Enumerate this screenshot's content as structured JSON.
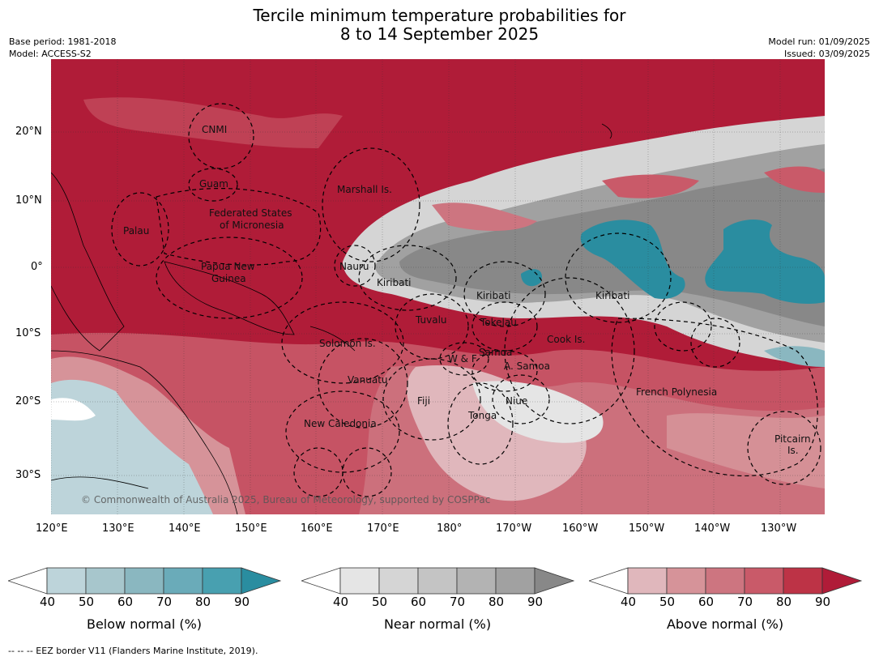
{
  "title_line1": "Tercile minimum temperature probabilities for",
  "title_line2": "8 to 14 September 2025",
  "base_period": "Base period: 1981-2018",
  "model": "Model: ACCESS-S2",
  "model_run": "Model run: 01/09/2025",
  "issued": "Issued: 03/09/2025",
  "lat_ticks": [
    "20°N",
    "10°N",
    "0°",
    "10°S",
    "20°S",
    "30°S"
  ],
  "lon_ticks": [
    "120°E",
    "130°E",
    "140°E",
    "150°E",
    "160°E",
    "170°E",
    "180°",
    "170°W",
    "160°W",
    "150°W",
    "140°W",
    "130°W"
  ],
  "copyright": "© Commonwealth of Australia 2025, Bureau of Meteorology, supported by COSPPac",
  "footer": "--  --  -- EEZ border V11 (Flanders Marine Institute, 2019).",
  "places": [
    {
      "text": "CNMI"
    },
    {
      "text": "Guam"
    },
    {
      "text": "Marshall Is."
    },
    {
      "text": "Palau"
    },
    {
      "text": "Federated States"
    },
    {
      "text": "of Micronesia"
    },
    {
      "text": "Papua New"
    },
    {
      "text": "Guinea"
    },
    {
      "text": "Nauru"
    },
    {
      "text": "Kiribati"
    },
    {
      "text": "Kiribati"
    },
    {
      "text": "Kiribati"
    },
    {
      "text": "Tuvalu"
    },
    {
      "text": "Tokelau"
    },
    {
      "text": "Solomon Is."
    },
    {
      "text": "Cook Is."
    },
    {
      "text": "W & F"
    },
    {
      "text": "Samoa"
    },
    {
      "text": "A. Samoa"
    },
    {
      "text": "Vanuatu"
    },
    {
      "text": "Fiji"
    },
    {
      "text": "Niue"
    },
    {
      "text": "French Polynesia"
    },
    {
      "text": "Tonga"
    },
    {
      "text": "New Caledonia"
    },
    {
      "text": "Pitcairn"
    },
    {
      "text": "Is."
    }
  ],
  "colorbars": [
    {
      "label": "Below normal (%)",
      "ticks": [
        "40",
        "50",
        "60",
        "70",
        "80",
        "90"
      ],
      "colors": [
        "#ffffff",
        "#bdd4da",
        "#a7c6cc",
        "#8ab7c0",
        "#6aabb9",
        "#48a0b0",
        "#2a8da0"
      ]
    },
    {
      "label": "Near normal (%)",
      "ticks": [
        "40",
        "50",
        "60",
        "70",
        "80",
        "90"
      ],
      "colors": [
        "#ffffff",
        "#e5e5e5",
        "#d5d5d5",
        "#c4c4c4",
        "#b3b3b3",
        "#a1a1a1",
        "#888888"
      ]
    },
    {
      "label": "Above normal (%)",
      "ticks": [
        "40",
        "50",
        "60",
        "70",
        "80",
        "90"
      ],
      "colors": [
        "#ffffff",
        "#e0b7bc",
        "#d69399",
        "#cd7580",
        "#c95a69",
        "#bd3346",
        "#b01c38"
      ]
    }
  ],
  "legend_colors": {
    "above_max": "#b01c38",
    "below_max": "#2a8da0",
    "near_max": "#888888",
    "land": "#ffffff",
    "eez": "#000000"
  }
}
